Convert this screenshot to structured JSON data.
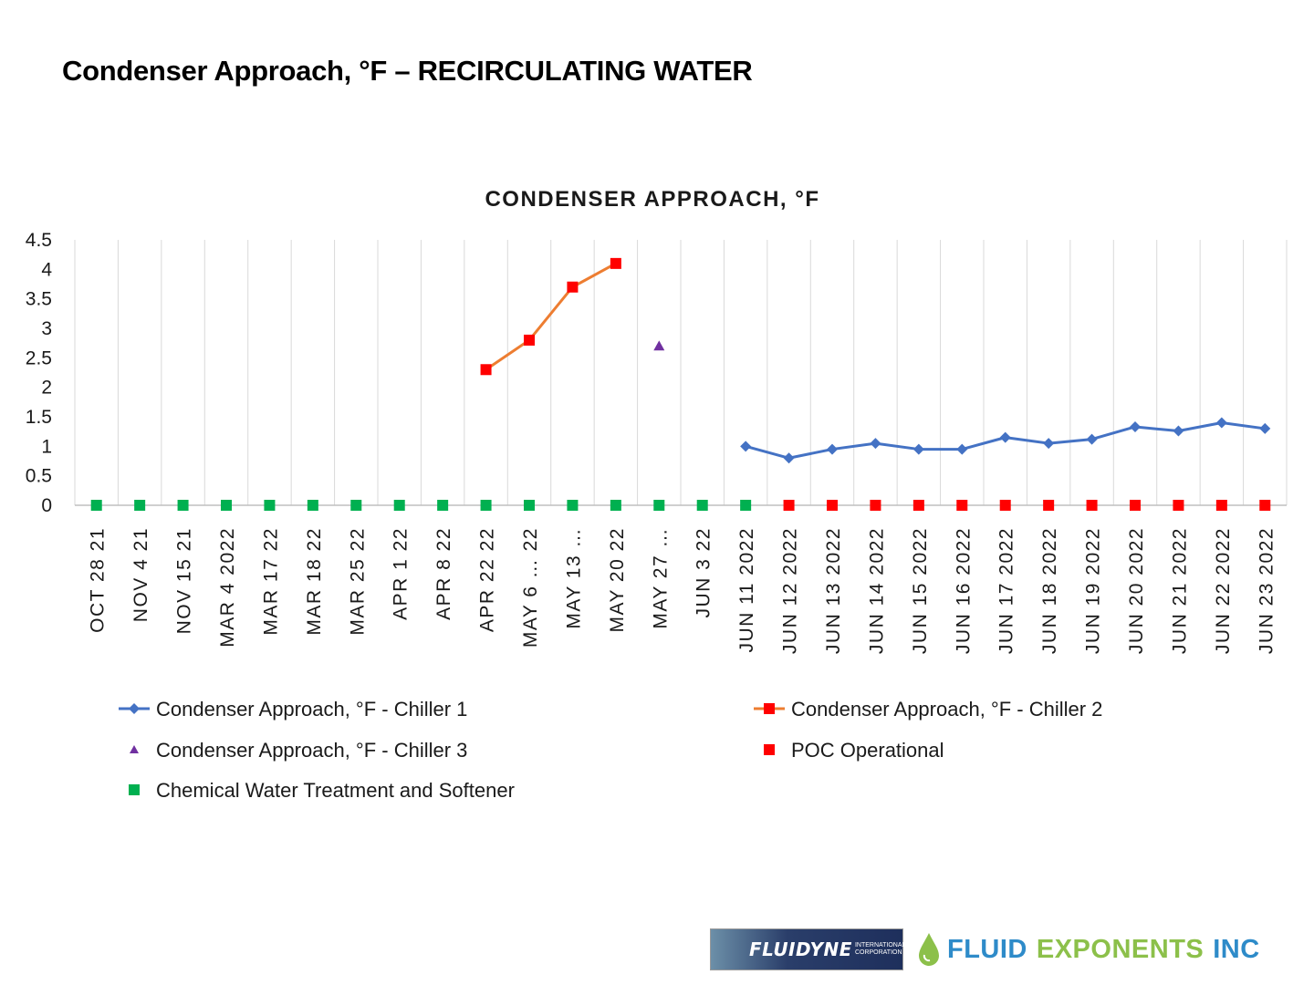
{
  "slide": {
    "title": "Condenser Approach, °F – RECIRCULATING WATER"
  },
  "chart_data": {
    "type": "line",
    "title": "CONDENSER APPROACH, °F",
    "xlabel": "",
    "ylabel": "",
    "ylim": [
      0,
      4.5
    ],
    "yticks": [
      "0",
      "0.5",
      "1",
      "1.5",
      "2",
      "2.5",
      "3",
      "3.5",
      "4",
      "4.5"
    ],
    "grid": "vertical",
    "categories": [
      "OCT 28 21",
      "NOV 4 21",
      "NOV 15 21",
      "MAR 4 2022",
      "MAR 17 22",
      "MAR 18 22",
      "MAR 25 22",
      "APR 1 22",
      "APR 8 22",
      "APR 22 22",
      "MAY 6 … 22",
      "MAY 13 …",
      "MAY 20 22",
      "MAY 27 …",
      "JUN 3 22",
      "JUN 11 2022",
      "JUN 12 2022",
      "JUN 13 2022",
      "JUN 14 2022",
      "JUN 15 2022",
      "JUN 16 2022",
      "JUN 17 2022",
      "JUN 18 2022",
      "JUN 19 2022",
      "JUN 20 2022",
      "JUN 21 2022",
      "JUN 22 2022",
      "JUN 23 2022"
    ],
    "series": [
      {
        "name": "Condenser Approach, °F  - Chiller 1",
        "color": "#4472c4",
        "marker": "diamond",
        "line": true,
        "values": [
          null,
          null,
          null,
          null,
          null,
          null,
          null,
          null,
          null,
          null,
          null,
          null,
          null,
          null,
          null,
          1.0,
          0.8,
          0.95,
          1.05,
          0.95,
          0.95,
          1.15,
          1.05,
          1.12,
          1.33,
          1.26,
          1.4,
          1.3
        ]
      },
      {
        "name": "Condenser Approach, °F  - Chiller 2",
        "color": "#ed7d31",
        "markerColor": "#ff0000",
        "marker": "square",
        "line": true,
        "values": [
          null,
          null,
          null,
          null,
          null,
          null,
          null,
          null,
          null,
          2.3,
          2.8,
          3.7,
          4.1,
          null,
          null,
          null,
          null,
          null,
          null,
          null,
          null,
          null,
          null,
          null,
          null,
          null,
          null,
          null
        ]
      },
      {
        "name": "Condenser Approach, °F  - Chiller 3",
        "color": "#7030a0",
        "marker": "triangle",
        "line": false,
        "values": [
          null,
          null,
          null,
          null,
          null,
          null,
          null,
          null,
          null,
          null,
          null,
          null,
          null,
          2.7,
          null,
          null,
          null,
          null,
          null,
          null,
          null,
          null,
          null,
          null,
          null,
          null,
          null,
          null
        ]
      },
      {
        "name": "POC Operational",
        "color": "#ff0000",
        "marker": "square",
        "line": false,
        "values": [
          null,
          null,
          null,
          null,
          null,
          null,
          null,
          null,
          null,
          null,
          null,
          null,
          null,
          null,
          null,
          null,
          0,
          0,
          0,
          0,
          0,
          0,
          0,
          0,
          0,
          0,
          0,
          0
        ]
      },
      {
        "name": "Chemical Water Treatment and Softener",
        "color": "#00b050",
        "marker": "square",
        "line": false,
        "values": [
          0,
          0,
          0,
          0,
          0,
          0,
          0,
          0,
          0,
          0,
          0,
          0,
          0,
          0,
          0,
          0,
          null,
          null,
          null,
          null,
          null,
          null,
          null,
          null,
          null,
          null,
          null,
          null
        ]
      }
    ]
  },
  "logos": {
    "fluidyne": {
      "mark": "FLUIDYNE",
      "sub1": "INTERNATIONAL",
      "sub2": "CORPORATION"
    },
    "fluid_exponents": {
      "word1": "FLUID",
      "word2": "EXPONENTS",
      "word3": "INC"
    }
  }
}
